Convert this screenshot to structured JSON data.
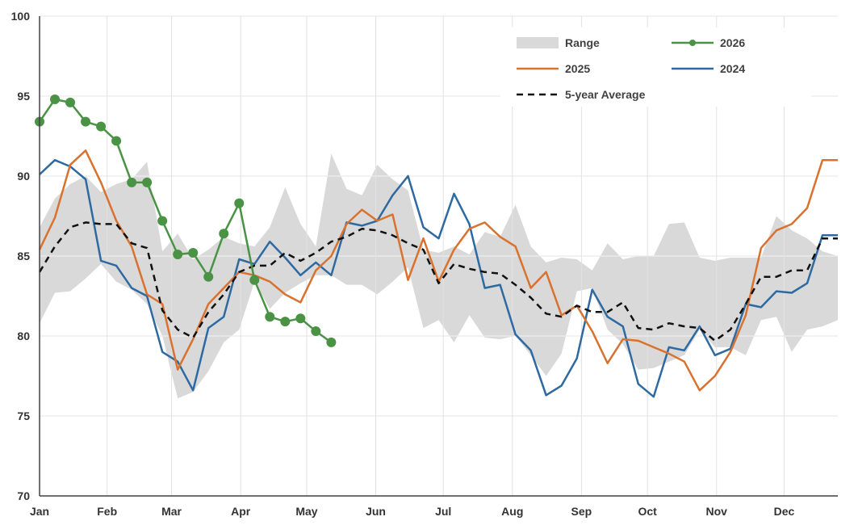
{
  "chart_data": {
    "type": "line",
    "title": "",
    "xlabel": "",
    "ylabel": "",
    "ylim": [
      70,
      100
    ],
    "y_ticks": [
      70,
      75,
      80,
      85,
      90,
      95,
      100
    ],
    "x_domain": [
      0,
      52
    ],
    "x_ticks": [
      {
        "label": "Jan",
        "x": 0
      },
      {
        "label": "Feb",
        "x": 4.4
      },
      {
        "label": "Mar",
        "x": 8.6
      },
      {
        "label": "Apr",
        "x": 13.1
      },
      {
        "label": "May",
        "x": 17.4
      },
      {
        "label": "Jun",
        "x": 21.9
      },
      {
        "label": "Jul",
        "x": 26.3
      },
      {
        "label": "Aug",
        "x": 30.8
      },
      {
        "label": "Sep",
        "x": 35.3
      },
      {
        "label": "Oct",
        "x": 39.6
      },
      {
        "label": "Nov",
        "x": 44.1
      },
      {
        "label": "Dec",
        "x": 48.5
      }
    ],
    "grid": {
      "vertical": true,
      "horizontal": true
    },
    "legend": {
      "position": "top-right",
      "entries": [
        {
          "label": "Range",
          "type": "band",
          "color": "#d9d9d9"
        },
        {
          "label": "2026",
          "type": "line-marker",
          "color": "#4a9345"
        },
        {
          "label": "2025",
          "type": "line",
          "color": "#d9722e"
        },
        {
          "label": "2024",
          "type": "line",
          "color": "#2e6aa1"
        },
        {
          "label": "5-year Average",
          "type": "dashed",
          "color": "#111111"
        }
      ]
    },
    "range": {
      "name": "Range",
      "color": "#d9d9d9",
      "x": [
        0,
        1,
        2,
        3,
        4,
        5,
        6,
        7,
        8,
        9,
        10,
        11,
        12,
        13,
        14,
        15,
        16,
        17,
        18,
        19,
        20,
        21,
        22,
        23,
        24,
        25,
        26,
        27,
        28,
        29,
        30,
        31,
        32,
        33,
        34,
        35,
        36,
        37,
        38,
        39,
        40,
        41,
        42,
        43,
        44,
        45,
        46,
        47,
        48,
        49,
        50,
        51,
        52
      ],
      "high": [
        86.8,
        88.6,
        89.5,
        90.0,
        89.0,
        89.5,
        89.8,
        90.9,
        85.3,
        86.4,
        84.8,
        85.4,
        86.2,
        85.8,
        85.6,
        86.8,
        89.3,
        87.0,
        85.6,
        91.4,
        89.2,
        88.8,
        90.7,
        89.8,
        89.1,
        85.4,
        85.2,
        85.6,
        85.1,
        86.5,
        86.2,
        88.2,
        85.6,
        84.6,
        84.9,
        84.8,
        84.1,
        85.8,
        84.8,
        85.0,
        85.0,
        87.0,
        87.1,
        84.9,
        84.7,
        84.9,
        84.9,
        84.9,
        87.5,
        86.6,
        86.1,
        85.3,
        85.0
      ],
      "low": [
        80.8,
        82.7,
        82.8,
        83.6,
        84.5,
        83.4,
        82.9,
        82.0,
        80.0,
        76.1,
        76.5,
        77.8,
        79.6,
        80.4,
        83.4,
        81.7,
        82.7,
        83.3,
        83.8,
        83.8,
        83.2,
        83.2,
        82.6,
        83.4,
        84.3,
        80.5,
        81.0,
        79.6,
        81.3,
        79.9,
        79.8,
        80.0,
        78.8,
        77.5,
        78.9,
        82.8,
        83.0,
        80.4,
        79.5,
        77.9,
        78.0,
        78.4,
        78.8,
        80.4,
        79.3,
        79.3,
        78.8,
        81.0,
        81.2,
        79.0,
        80.4,
        80.6,
        81.0
      ]
    },
    "series": [
      {
        "name": "2024",
        "color": "#2e6aa1",
        "x": [
          0,
          1,
          2,
          3,
          4,
          5,
          6,
          7,
          8,
          9,
          10,
          11,
          12,
          13,
          14,
          15,
          16,
          17,
          18,
          19,
          20,
          21,
          22,
          23,
          24,
          25,
          26,
          27,
          28,
          29,
          30,
          31,
          32,
          33,
          34,
          35,
          36,
          37,
          38,
          39,
          40,
          41,
          42,
          43,
          44,
          45,
          46,
          47,
          48,
          49,
          50,
          51,
          52
        ],
        "y": [
          90.1,
          91.0,
          90.6,
          89.8,
          84.7,
          84.4,
          83.0,
          82.5,
          79.0,
          78.4,
          76.6,
          80.5,
          81.2,
          84.8,
          84.5,
          85.9,
          84.9,
          83.8,
          84.6,
          83.8,
          87.1,
          86.9,
          87.2,
          88.8,
          90.0,
          86.8,
          86.1,
          88.9,
          87.0,
          83.0,
          83.2,
          80.1,
          79.1,
          76.3,
          76.9,
          78.6,
          82.9,
          81.2,
          80.6,
          77.0,
          76.2,
          79.3,
          79.1,
          80.6,
          78.8,
          79.2,
          82.0,
          81.8,
          82.8,
          82.7,
          83.3,
          86.3,
          86.3
        ]
      },
      {
        "name": "2025",
        "color": "#d9722e",
        "x": [
          0,
          1,
          2,
          3,
          4,
          5,
          6,
          7,
          8,
          9,
          10,
          11,
          12,
          13,
          14,
          15,
          16,
          17,
          18,
          19,
          20,
          21,
          22,
          23,
          24,
          25,
          26,
          27,
          28,
          29,
          30,
          31,
          32,
          33,
          34,
          35,
          36,
          37,
          38,
          39,
          40,
          41,
          42,
          43,
          44,
          45,
          46,
          47,
          48,
          49,
          50,
          51,
          52
        ],
        "y": [
          85.4,
          87.4,
          90.7,
          91.6,
          89.6,
          87.2,
          85.6,
          82.6,
          82.0,
          77.9,
          79.8,
          82.0,
          83.0,
          84.0,
          83.8,
          83.4,
          82.6,
          82.1,
          84.1,
          85.0,
          87.0,
          87.9,
          87.2,
          87.6,
          83.5,
          86.1,
          83.4,
          85.4,
          86.7,
          87.1,
          86.2,
          85.6,
          83.0,
          84.0,
          81.3,
          81.9,
          80.3,
          78.3,
          79.8,
          79.7,
          79.3,
          78.9,
          78.4,
          76.6,
          77.5,
          79.0,
          81.3,
          85.5,
          86.6,
          87.0,
          88.0,
          91.0,
          91.0
        ]
      },
      {
        "name": "5-year Average",
        "color": "#111111",
        "dashed": true,
        "x": [
          0,
          1,
          2,
          3,
          4,
          5,
          6,
          7,
          8,
          9,
          10,
          11,
          12,
          13,
          14,
          15,
          16,
          17,
          18,
          19,
          20,
          21,
          22,
          23,
          24,
          25,
          26,
          27,
          28,
          29,
          30,
          31,
          32,
          33,
          34,
          35,
          36,
          37,
          38,
          39,
          40,
          41,
          42,
          43,
          44,
          45,
          46,
          47,
          48,
          49,
          50,
          51,
          52
        ],
        "y": [
          84.0,
          85.6,
          86.8,
          87.1,
          87.0,
          87.0,
          85.8,
          85.5,
          81.6,
          80.4,
          79.9,
          81.5,
          82.6,
          84.0,
          84.4,
          84.4,
          85.2,
          84.7,
          85.2,
          85.9,
          86.2,
          86.7,
          86.6,
          86.3,
          85.8,
          85.4,
          83.3,
          84.5,
          84.2,
          84.0,
          83.9,
          83.2,
          82.4,
          81.4,
          81.2,
          81.9,
          81.5,
          81.5,
          82.1,
          80.5,
          80.4,
          80.8,
          80.6,
          80.5,
          79.7,
          80.4,
          82.0,
          83.7,
          83.7,
          84.1,
          84.1,
          86.1,
          86.1
        ]
      },
      {
        "name": "2026",
        "color": "#4a9345",
        "markers": true,
        "x": [
          0,
          1,
          2,
          3,
          4,
          5,
          6,
          7,
          8,
          9,
          10,
          11,
          12,
          13,
          14,
          15,
          16,
          17,
          18,
          19
        ],
        "y": [
          93.4,
          94.8,
          94.6,
          93.4,
          93.1,
          92.2,
          89.6,
          89.6,
          87.2,
          85.1,
          85.2,
          83.7,
          86.4,
          88.3,
          83.5,
          81.2,
          80.9,
          81.1,
          80.3,
          79.6
        ]
      }
    ]
  }
}
